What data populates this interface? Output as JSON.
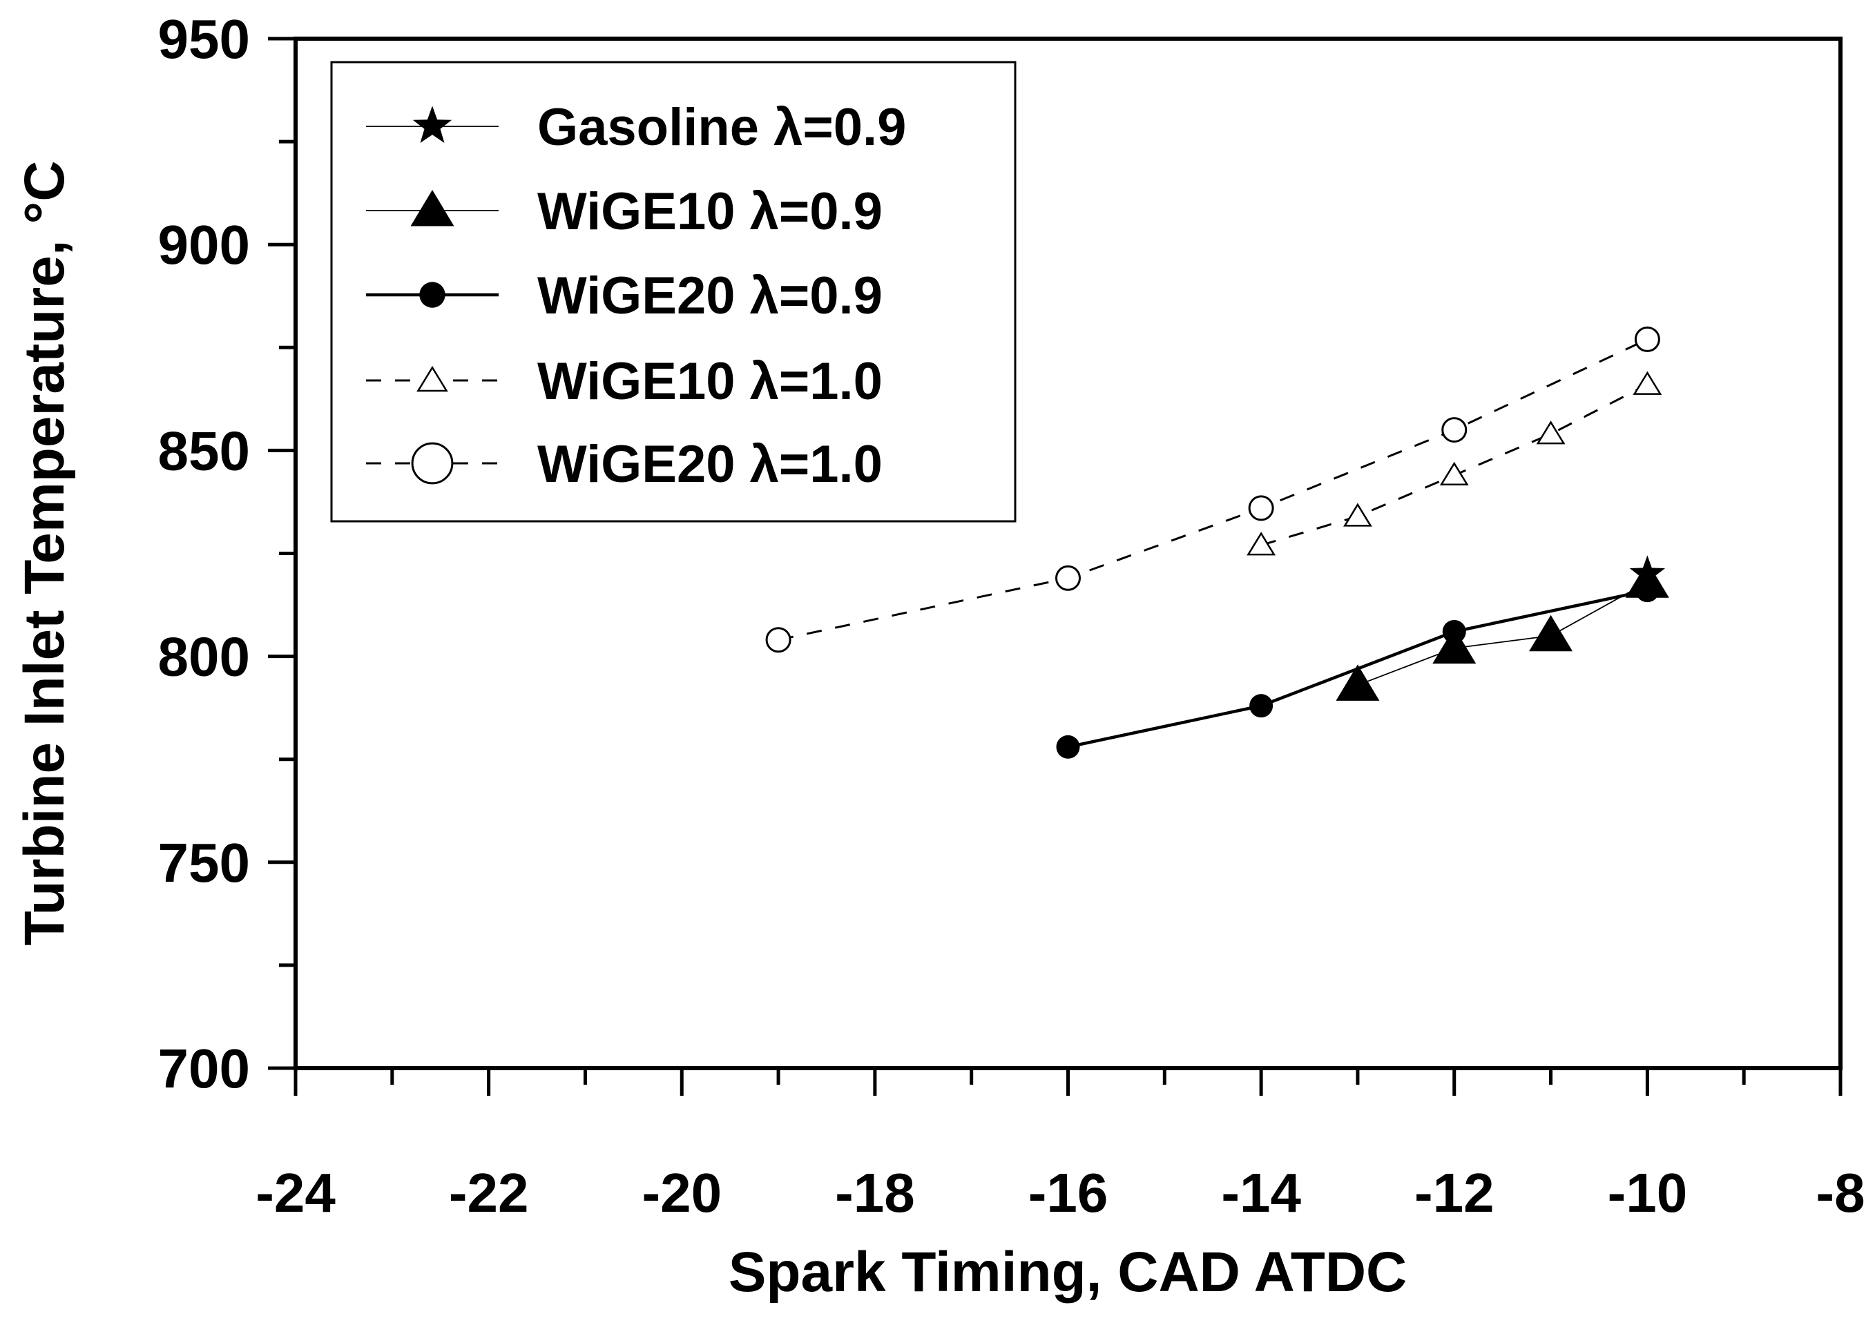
{
  "chart_data": {
    "type": "line",
    "title": "",
    "xlabel": "Spark Timing, CAD ATDC",
    "ylabel": "Turbine Inlet Temperature, °C",
    "xlim": [
      -24,
      -8
    ],
    "ylim": [
      700,
      950
    ],
    "x_ticks": [
      -24,
      -22,
      -20,
      -18,
      -16,
      -14,
      -12,
      -10,
      -8
    ],
    "x_tick_labels": [
      "-24",
      "-22",
      "-20",
      "-18",
      "-16",
      "-14",
      "-12",
      "-10",
      "-8"
    ],
    "y_ticks": [
      700,
      750,
      800,
      850,
      900,
      950
    ],
    "y_tick_labels": [
      "700",
      "750",
      "800",
      "850",
      "900",
      "950"
    ],
    "grid": false,
    "legend_position": "top-left",
    "series": [
      {
        "name": "Gasoline λ=0.9",
        "marker": "star-filled",
        "line": "solid-thin",
        "x": [
          -10
        ],
        "y": [
          820
        ]
      },
      {
        "name": "WiGE10  λ=0.9",
        "marker": "triangle-filled",
        "line": "solid-thin",
        "x": [
          -13,
          -12,
          -11,
          -10
        ],
        "y": [
          793,
          802,
          805,
          818
        ]
      },
      {
        "name": "WiGE20  λ=0.9",
        "marker": "circle-filled",
        "line": "solid-thick",
        "x": [
          -16,
          -14,
          -12,
          -10
        ],
        "y": [
          778,
          788,
          806,
          816
        ]
      },
      {
        "name": "WiGE10  λ=1.0",
        "marker": "triangle-open",
        "line": "dashed",
        "x": [
          -14,
          -13,
          -12,
          -11,
          -10
        ],
        "y": [
          827,
          834,
          844,
          854,
          866
        ]
      },
      {
        "name": "WiGE20  λ=1.0",
        "marker": "circle-open",
        "line": "dashed",
        "x": [
          -19,
          -16,
          -14,
          -12,
          -10
        ],
        "y": [
          804,
          819,
          836,
          855,
          877
        ]
      }
    ]
  }
}
